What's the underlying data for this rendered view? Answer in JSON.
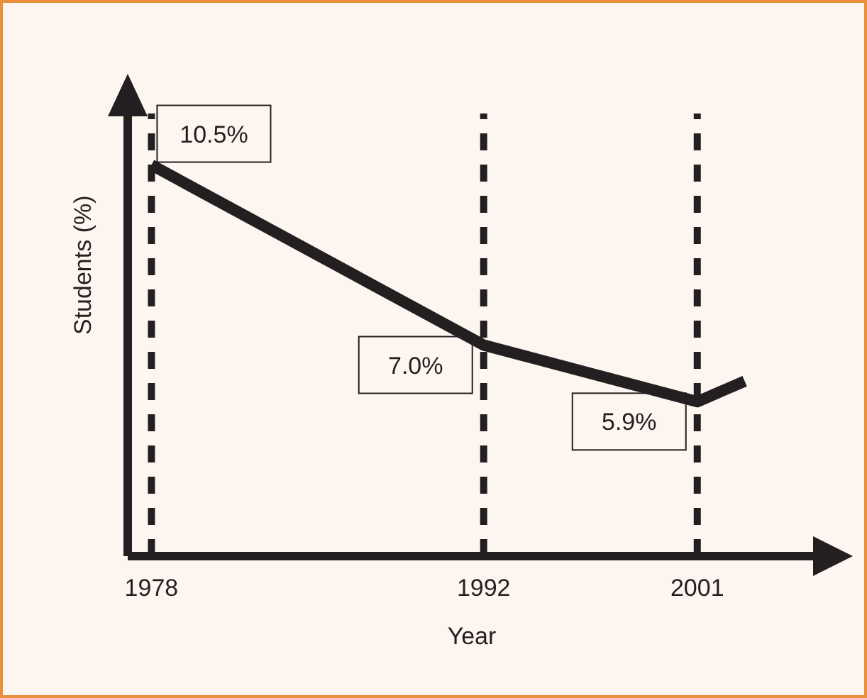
{
  "chart_data": {
    "type": "line",
    "xlabel": "Year",
    "ylabel": "Students (%)",
    "x": [
      1978,
      1992,
      2001,
      2003
    ],
    "series": [
      {
        "color": "#231f20",
        "values": [
          10.5,
          7.0,
          5.9,
          6.3
        ],
        "value_labels": [
          "10.5%",
          "7.0%",
          "5.9%",
          null
        ]
      }
    ],
    "xlim": [
      1977,
      2006
    ],
    "xticks": [
      1978,
      1992,
      2001
    ],
    "tick_labels": "x",
    "ref_lines": [
      {
        "axis": "x",
        "value": 1978,
        "color": "#231f20",
        "line_style": "dashed"
      },
      {
        "axis": "x",
        "value": 1992,
        "color": "#231f20",
        "line_style": "dashed"
      },
      {
        "axis": "x",
        "value": 2001,
        "color": "#231f20",
        "line_style": "dashed"
      }
    ],
    "grid": false,
    "legend": false,
    "marker": "none",
    "line_style": "solid"
  }
}
